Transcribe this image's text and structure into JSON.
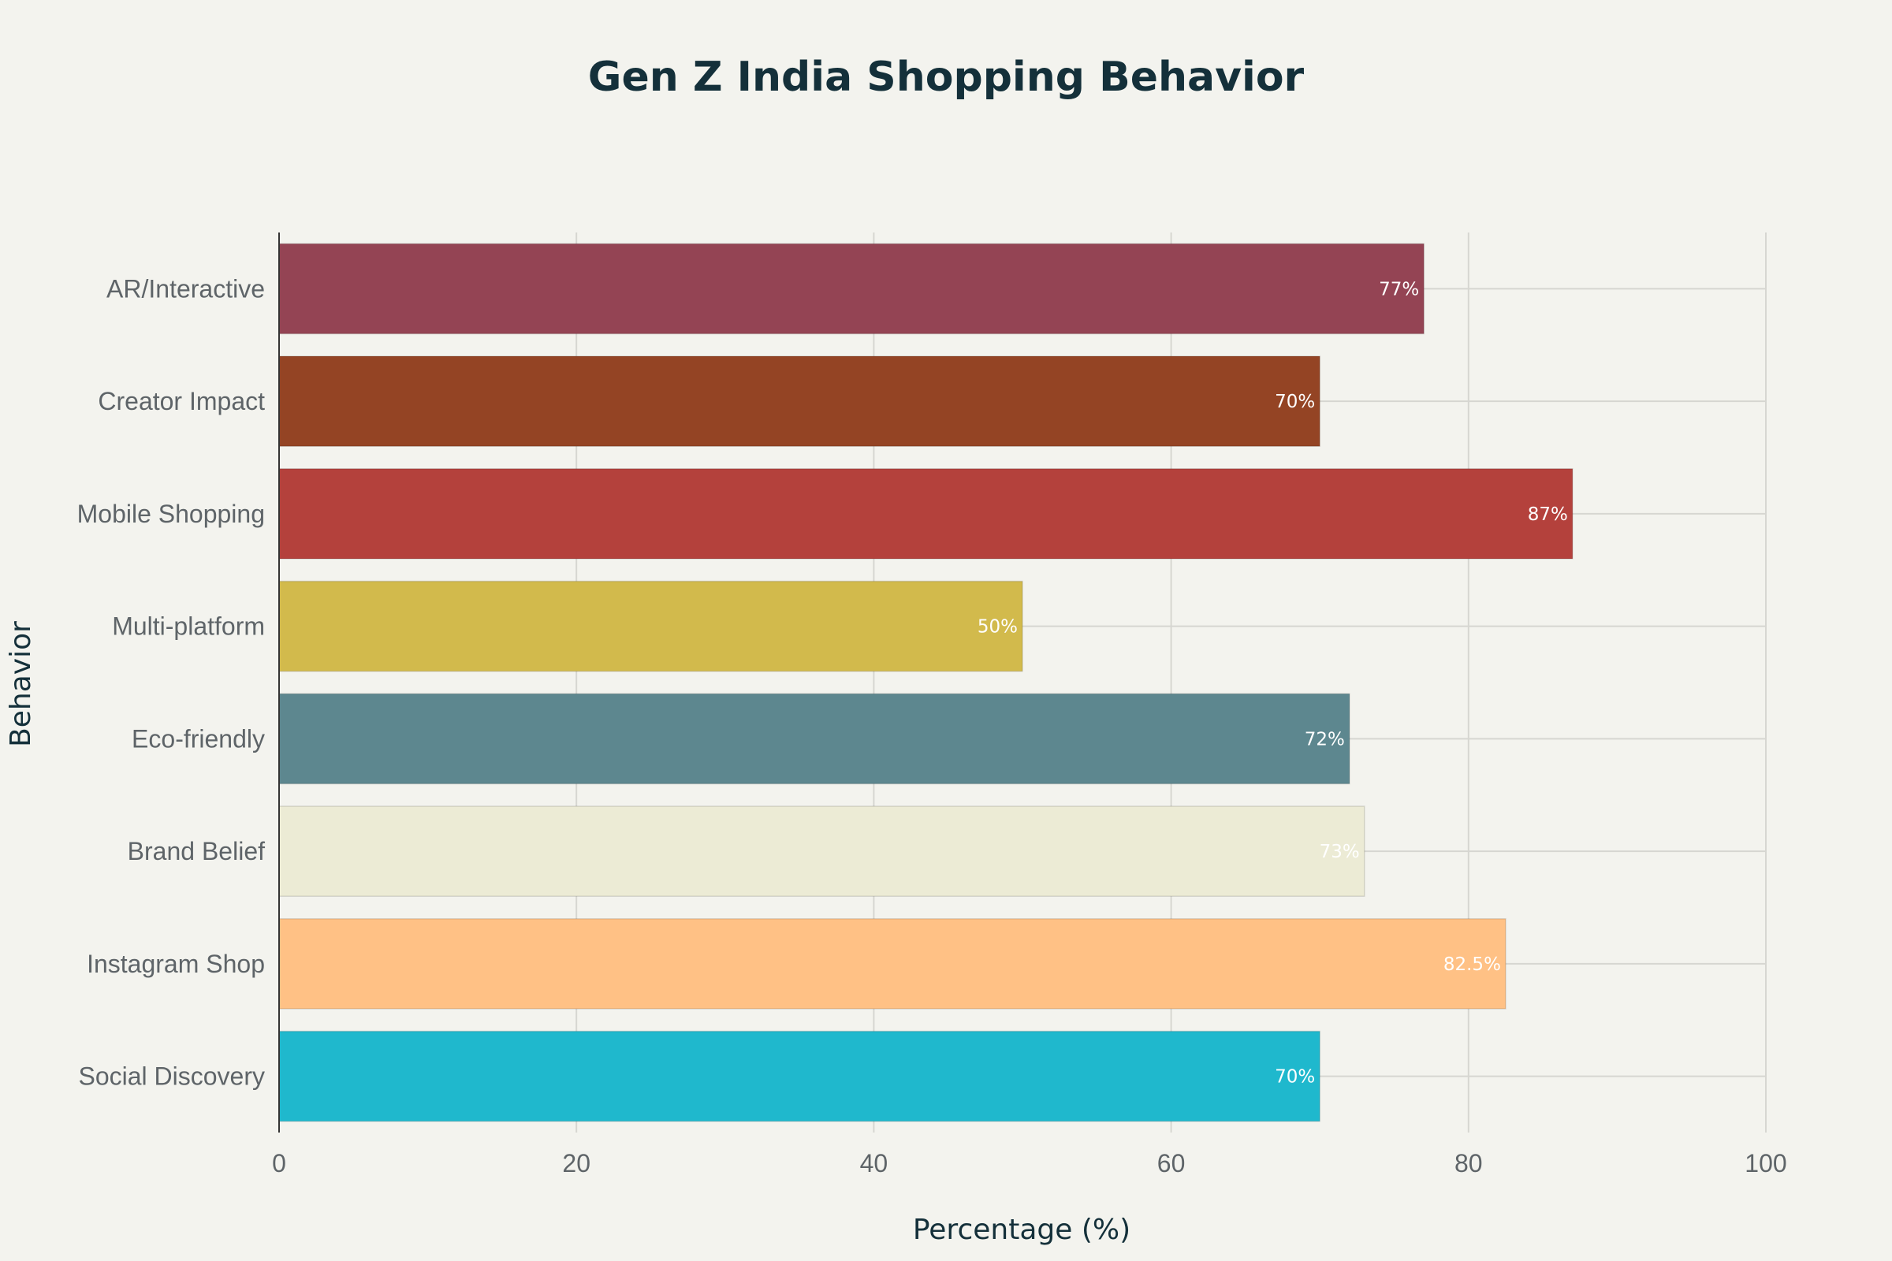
{
  "chart_data": {
    "type": "bar",
    "orientation": "horizontal",
    "title": "Gen Z India Shopping Behavior",
    "xlabel": "Percentage (%)",
    "ylabel": "Behavior",
    "xlim": [
      0,
      100
    ],
    "xticks": [
      0,
      20,
      40,
      60,
      80,
      100
    ],
    "grid": true,
    "legend": "none",
    "categories": [
      "AR/Interactive",
      "Creator Impact",
      "Mobile Shopping",
      "Multi-platform",
      "Eco-friendly",
      "Brand Belief",
      "Instagram Shop",
      "Social Discovery"
    ],
    "values": [
      77,
      70,
      87,
      50,
      72,
      73,
      82.5,
      70
    ],
    "value_labels": [
      "77%",
      "70%",
      "87%",
      "50%",
      "72%",
      "73%",
      "82.5%",
      "70%"
    ],
    "colors": [
      "#944454",
      "#944424",
      "#B4413C",
      "#D2BA4C",
      "#5D878F",
      "#ECEBD5",
      "#FFC185",
      "#1FB8CD"
    ]
  }
}
